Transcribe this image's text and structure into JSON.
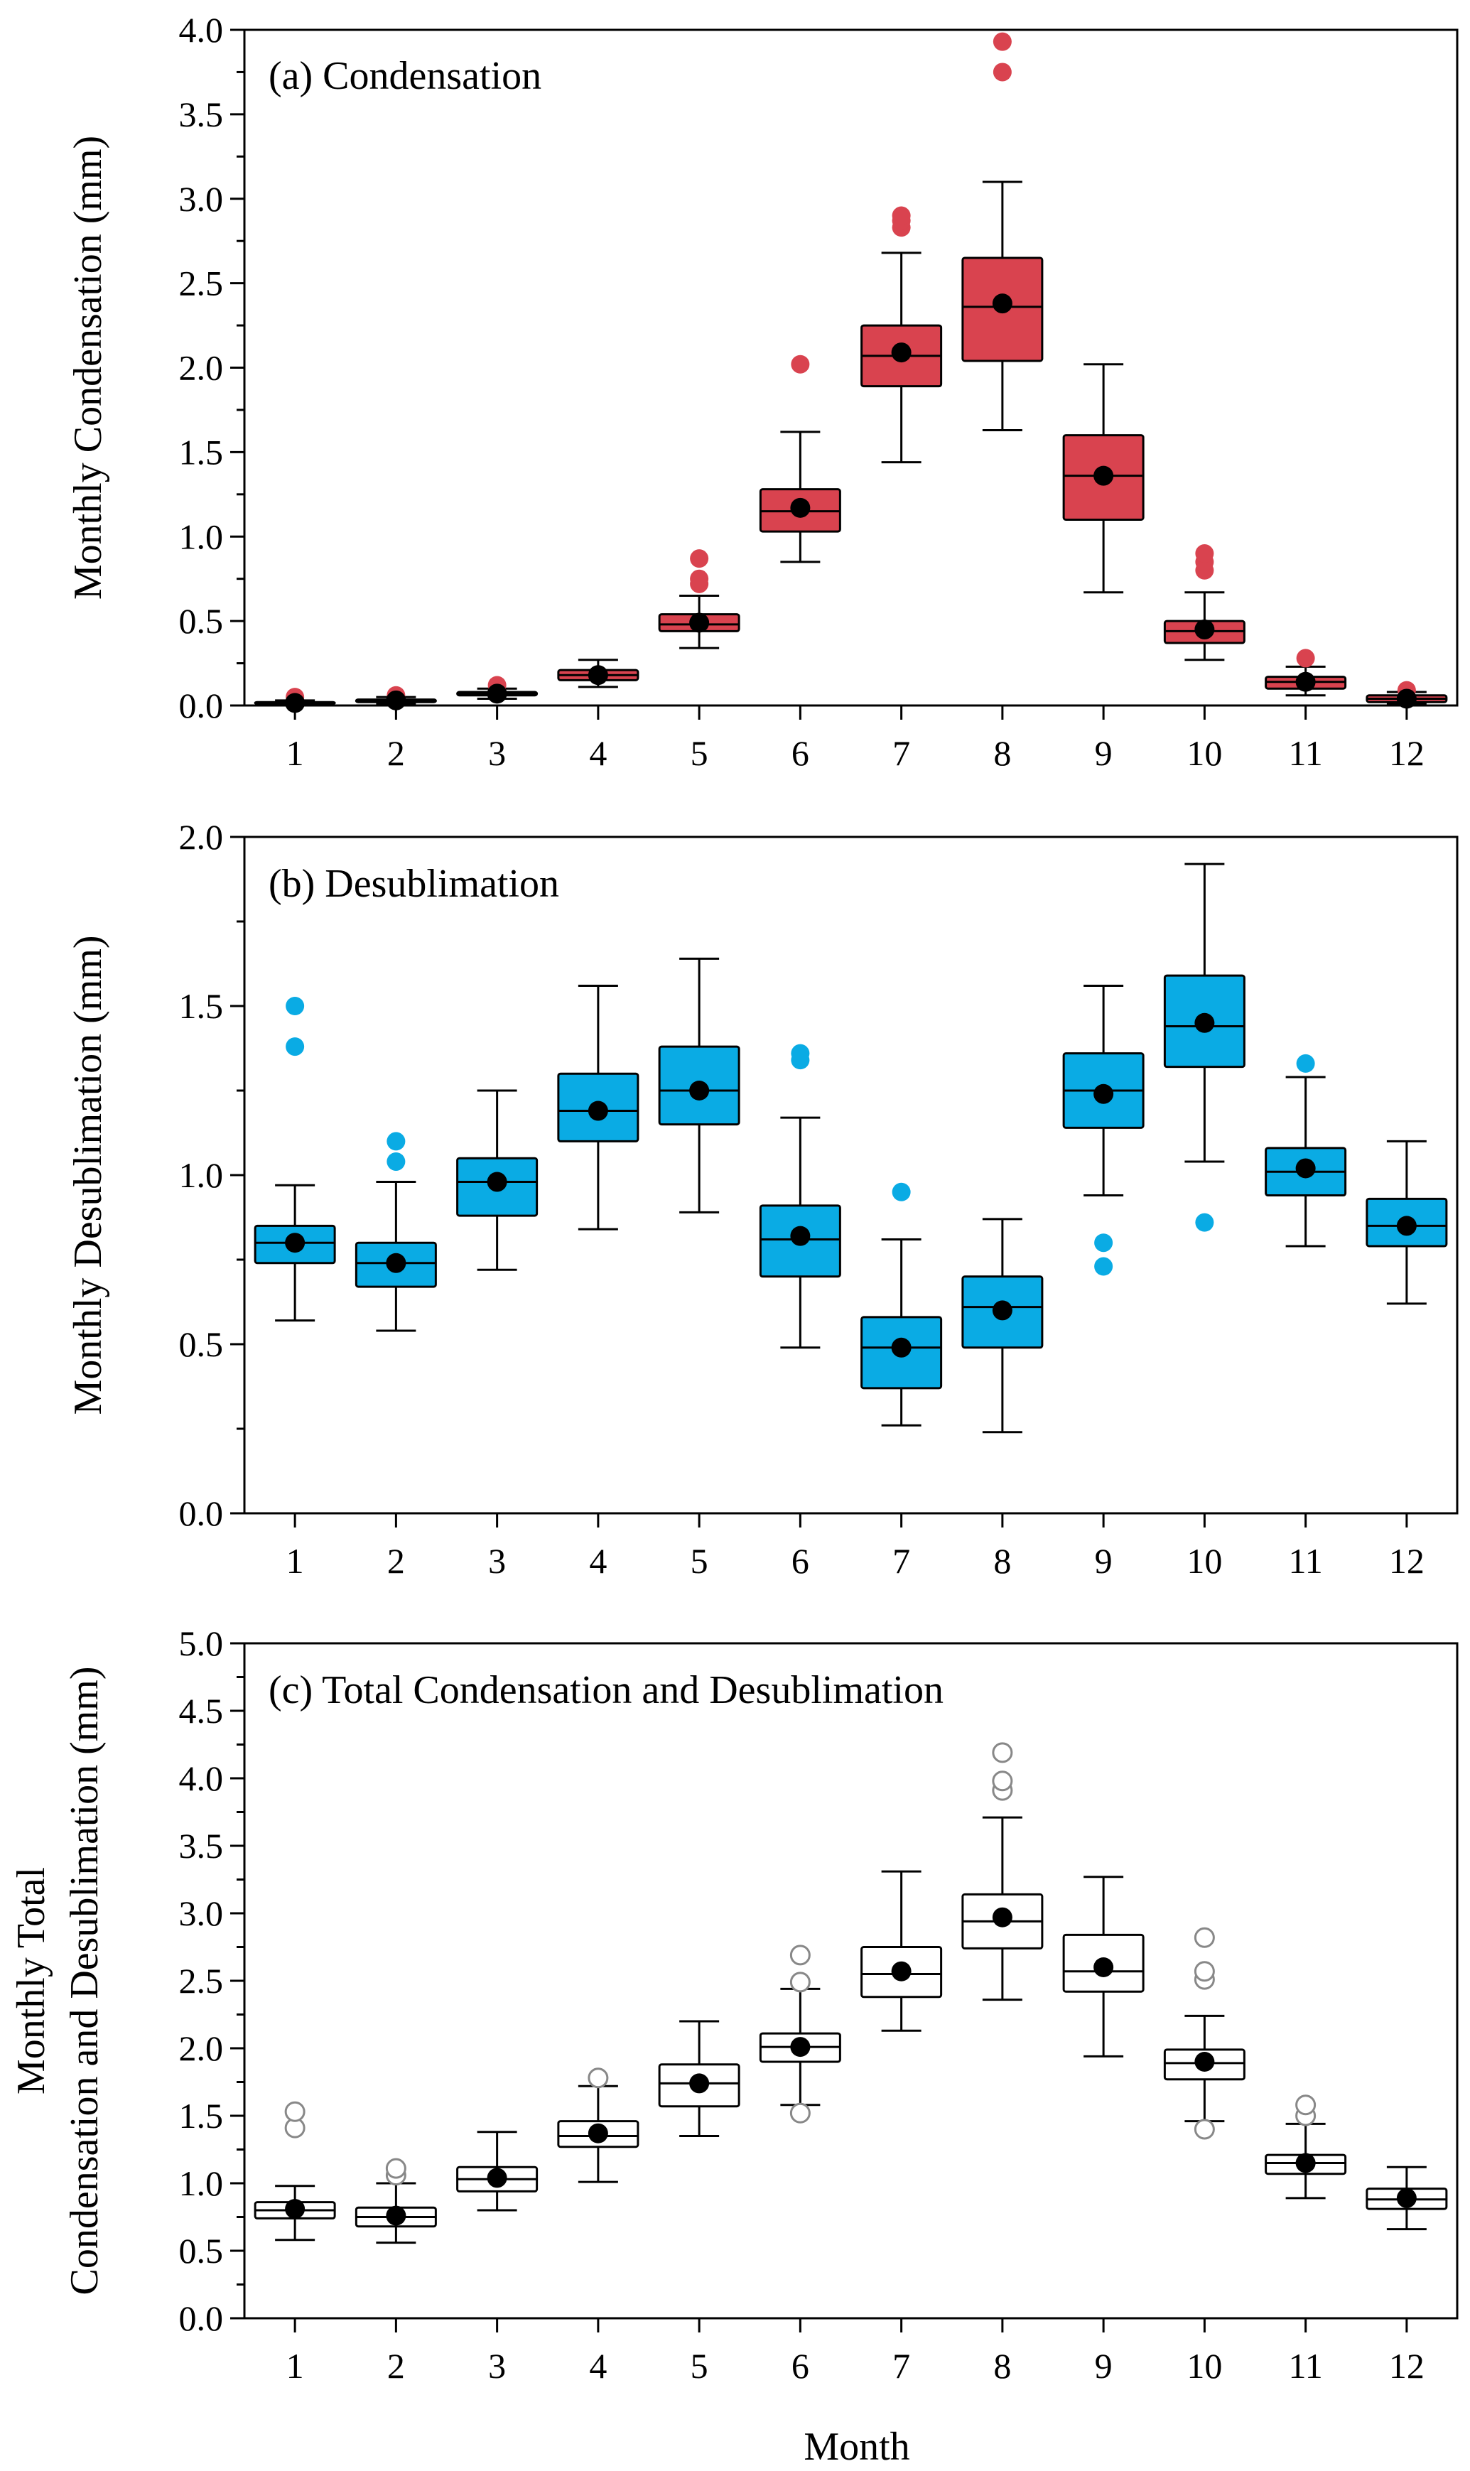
{
  "figure": {
    "xlabel": "Month"
  },
  "chart_data": [
    {
      "id": "a",
      "type": "box",
      "title": "(a) Condensation",
      "ylabel_lines": [
        "Monthly Condensation (mm)"
      ],
      "ylim": [
        0,
        4.0
      ],
      "ymajor": 0.5,
      "yminor": 0.25,
      "ytick_labels": [
        "0.0",
        "0.5",
        "1.0",
        "1.5",
        "2.0",
        "2.5",
        "3.0",
        "3.5",
        "4.0"
      ],
      "categories": [
        "1",
        "2",
        "3",
        "4",
        "5",
        "6",
        "7",
        "8",
        "9",
        "10",
        "11",
        "12"
      ],
      "fill_color": "#d9434f",
      "outlier_style": "filled",
      "outlier_color": "#d9434f",
      "boxes": [
        {
          "month": "1",
          "whislo": 0.005,
          "q1": 0.01,
          "med": 0.015,
          "q3": 0.02,
          "whishi": 0.03,
          "mean": 0.015,
          "fliers": [
            0.05
          ]
        },
        {
          "month": "2",
          "whislo": 0.01,
          "q1": 0.02,
          "med": 0.025,
          "q3": 0.035,
          "whishi": 0.05,
          "mean": 0.03,
          "fliers": [
            0.06
          ]
        },
        {
          "month": "3",
          "whislo": 0.04,
          "q1": 0.06,
          "med": 0.07,
          "q3": 0.08,
          "whishi": 0.1,
          "mean": 0.07,
          "fliers": [
            0.12
          ]
        },
        {
          "month": "4",
          "whislo": 0.11,
          "q1": 0.15,
          "med": 0.18,
          "q3": 0.21,
          "whishi": 0.27,
          "mean": 0.18,
          "fliers": []
        },
        {
          "month": "5",
          "whislo": 0.34,
          "q1": 0.44,
          "med": 0.48,
          "q3": 0.54,
          "whishi": 0.65,
          "mean": 0.49,
          "fliers": [
            0.72,
            0.75,
            0.87
          ]
        },
        {
          "month": "6",
          "whislo": 0.85,
          "q1": 1.03,
          "med": 1.15,
          "q3": 1.28,
          "whishi": 1.62,
          "mean": 1.17,
          "fliers": [
            2.02
          ]
        },
        {
          "month": "7",
          "whislo": 1.44,
          "q1": 1.89,
          "med": 2.07,
          "q3": 2.25,
          "whishi": 2.68,
          "mean": 2.09,
          "fliers": [
            2.83,
            2.87,
            2.9
          ]
        },
        {
          "month": "8",
          "whislo": 1.63,
          "q1": 2.04,
          "med": 2.36,
          "q3": 2.65,
          "whishi": 3.1,
          "mean": 2.38,
          "fliers": [
            3.75,
            3.93
          ]
        },
        {
          "month": "9",
          "whislo": 0.67,
          "q1": 1.1,
          "med": 1.36,
          "q3": 1.6,
          "whishi": 2.02,
          "mean": 1.36,
          "fliers": []
        },
        {
          "month": "10",
          "whislo": 0.27,
          "q1": 0.37,
          "med": 0.44,
          "q3": 0.5,
          "whishi": 0.67,
          "mean": 0.45,
          "fliers": [
            0.8,
            0.85,
            0.9
          ]
        },
        {
          "month": "11",
          "whislo": 0.06,
          "q1": 0.1,
          "med": 0.14,
          "q3": 0.17,
          "whishi": 0.23,
          "mean": 0.14,
          "fliers": [
            0.28
          ]
        },
        {
          "month": "12",
          "whislo": 0.01,
          "q1": 0.02,
          "med": 0.04,
          "q3": 0.06,
          "whishi": 0.08,
          "mean": 0.04,
          "fliers": [
            0.09
          ]
        }
      ]
    },
    {
      "id": "b",
      "type": "box",
      "title": "(b) Desublimation",
      "ylabel_lines": [
        "Monthly Desublimation (mm)"
      ],
      "ylim": [
        0,
        2.0
      ],
      "ymajor": 0.5,
      "yminor": 0.25,
      "ytick_labels": [
        "0.0",
        "0.5",
        "1.0",
        "1.5",
        "2.0"
      ],
      "categories": [
        "1",
        "2",
        "3",
        "4",
        "5",
        "6",
        "7",
        "8",
        "9",
        "10",
        "11",
        "12"
      ],
      "fill_color": "#0aabe4",
      "outlier_style": "filled",
      "outlier_color": "#0aabe4",
      "boxes": [
        {
          "month": "1",
          "whislo": 0.57,
          "q1": 0.74,
          "med": 0.8,
          "q3": 0.85,
          "whishi": 0.97,
          "mean": 0.8,
          "fliers": [
            1.38,
            1.5
          ]
        },
        {
          "month": "2",
          "whislo": 0.54,
          "q1": 0.67,
          "med": 0.74,
          "q3": 0.8,
          "whishi": 0.98,
          "mean": 0.74,
          "fliers": [
            1.04,
            1.1
          ]
        },
        {
          "month": "3",
          "whislo": 0.72,
          "q1": 0.88,
          "med": 0.98,
          "q3": 1.05,
          "whishi": 1.25,
          "mean": 0.98,
          "fliers": []
        },
        {
          "month": "4",
          "whislo": 0.84,
          "q1": 1.1,
          "med": 1.19,
          "q3": 1.3,
          "whishi": 1.56,
          "mean": 1.19,
          "fliers": []
        },
        {
          "month": "5",
          "whislo": 0.89,
          "q1": 1.15,
          "med": 1.25,
          "q3": 1.38,
          "whishi": 1.64,
          "mean": 1.25,
          "fliers": []
        },
        {
          "month": "6",
          "whislo": 0.49,
          "q1": 0.7,
          "med": 0.81,
          "q3": 0.91,
          "whishi": 1.17,
          "mean": 0.82,
          "fliers": [
            1.34,
            1.36
          ]
        },
        {
          "month": "7",
          "whislo": 0.26,
          "q1": 0.37,
          "med": 0.49,
          "q3": 0.58,
          "whishi": 0.81,
          "mean": 0.49,
          "fliers": [
            0.95
          ]
        },
        {
          "month": "8",
          "whislo": 0.24,
          "q1": 0.49,
          "med": 0.61,
          "q3": 0.7,
          "whishi": 0.87,
          "mean": 0.6,
          "fliers": []
        },
        {
          "month": "9",
          "whislo": 0.94,
          "q1": 1.14,
          "med": 1.25,
          "q3": 1.36,
          "whishi": 1.56,
          "mean": 1.24,
          "fliers": [
            0.73,
            0.8
          ]
        },
        {
          "month": "10",
          "whislo": 1.04,
          "q1": 1.32,
          "med": 1.44,
          "q3": 1.59,
          "whishi": 1.92,
          "mean": 1.45,
          "fliers": [
            0.86
          ]
        },
        {
          "month": "11",
          "whislo": 0.79,
          "q1": 0.94,
          "med": 1.01,
          "q3": 1.08,
          "whishi": 1.29,
          "mean": 1.02,
          "fliers": [
            1.33
          ]
        },
        {
          "month": "12",
          "whislo": 0.62,
          "q1": 0.79,
          "med": 0.85,
          "q3": 0.93,
          "whishi": 1.1,
          "mean": 0.85,
          "fliers": []
        }
      ]
    },
    {
      "id": "c",
      "type": "box",
      "title": "(c) Total Condensation and Desublimation",
      "ylabel_lines": [
        "Monthly Total",
        "Condensation and Desublimation (mm)"
      ],
      "ylim": [
        0,
        5.0
      ],
      "ymajor": 0.5,
      "yminor": 0.25,
      "ytick_labels": [
        "0.0",
        "0.5",
        "1.0",
        "1.5",
        "2.0",
        "2.5",
        "3.0",
        "3.5",
        "4.0",
        "4.5",
        "5.0"
      ],
      "categories": [
        "1",
        "2",
        "3",
        "4",
        "5",
        "6",
        "7",
        "8",
        "9",
        "10",
        "11",
        "12"
      ],
      "fill_color": "#ffffff",
      "outlier_style": "hollow",
      "outlier_color": "#888888",
      "boxes": [
        {
          "month": "1",
          "whislo": 0.58,
          "q1": 0.74,
          "med": 0.8,
          "q3": 0.86,
          "whishi": 0.98,
          "mean": 0.81,
          "fliers": [
            1.41,
            1.53
          ]
        },
        {
          "month": "2",
          "whislo": 0.56,
          "q1": 0.68,
          "med": 0.75,
          "q3": 0.82,
          "whishi": 1.0,
          "mean": 0.76,
          "fliers": [
            1.06,
            1.11
          ]
        },
        {
          "month": "3",
          "whislo": 0.8,
          "q1": 0.94,
          "med": 1.03,
          "q3": 1.12,
          "whishi": 1.38,
          "mean": 1.04,
          "fliers": []
        },
        {
          "month": "4",
          "whislo": 1.01,
          "q1": 1.27,
          "med": 1.35,
          "q3": 1.46,
          "whishi": 1.72,
          "mean": 1.37,
          "fliers": [
            1.78
          ]
        },
        {
          "month": "5",
          "whislo": 1.35,
          "q1": 1.57,
          "med": 1.74,
          "q3": 1.88,
          "whishi": 2.2,
          "mean": 1.74,
          "fliers": []
        },
        {
          "month": "6",
          "whislo": 1.58,
          "q1": 1.9,
          "med": 2.01,
          "q3": 2.11,
          "whishi": 2.44,
          "mean": 2.01,
          "fliers": [
            1.52,
            2.49,
            2.69
          ]
        },
        {
          "month": "7",
          "whislo": 2.13,
          "q1": 2.38,
          "med": 2.55,
          "q3": 2.75,
          "whishi": 3.31,
          "mean": 2.57,
          "fliers": []
        },
        {
          "month": "8",
          "whislo": 2.36,
          "q1": 2.74,
          "med": 2.94,
          "q3": 3.14,
          "whishi": 3.71,
          "mean": 2.97,
          "fliers": [
            3.91,
            3.98,
            4.19
          ]
        },
        {
          "month": "9",
          "whislo": 1.94,
          "q1": 2.42,
          "med": 2.57,
          "q3": 2.84,
          "whishi": 3.27,
          "mean": 2.6,
          "fliers": []
        },
        {
          "month": "10",
          "whislo": 1.46,
          "q1": 1.77,
          "med": 1.89,
          "q3": 1.99,
          "whishi": 2.24,
          "mean": 1.9,
          "fliers": [
            1.4,
            2.51,
            2.57,
            2.82
          ]
        },
        {
          "month": "11",
          "whislo": 0.89,
          "q1": 1.07,
          "med": 1.15,
          "q3": 1.21,
          "whishi": 1.44,
          "mean": 1.15,
          "fliers": [
            1.5,
            1.58
          ]
        },
        {
          "month": "12",
          "whislo": 0.66,
          "q1": 0.81,
          "med": 0.88,
          "q3": 0.96,
          "whishi": 1.12,
          "mean": 0.89,
          "fliers": []
        }
      ]
    }
  ]
}
